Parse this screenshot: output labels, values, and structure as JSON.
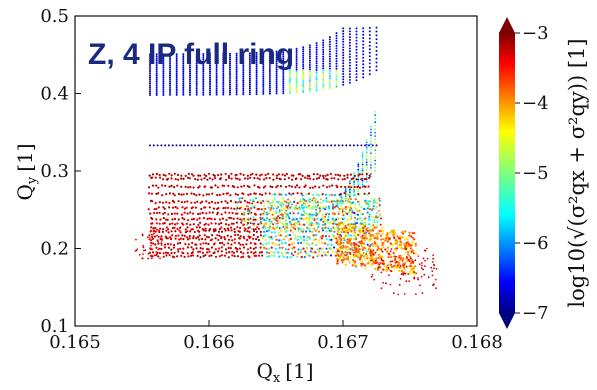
{
  "chart_data": {
    "type": "scatter",
    "title": "",
    "annotation": "Z, 4 IP full ring",
    "xlabel": "Q",
    "xlabel_sub": "x",
    "xlabel_unit": "[1]",
    "ylabel": "Q",
    "ylabel_sub": "y",
    "ylabel_unit": "[1]",
    "xlim": [
      0.165,
      0.168
    ],
    "ylim": [
      0.1,
      0.5
    ],
    "xticks": [
      "0.165",
      "0.166",
      "0.167",
      "0.168"
    ],
    "yticks": [
      "0.1",
      "0.2",
      "0.3",
      "0.4",
      "0.5"
    ],
    "grid": false,
    "colorbar": {
      "label": "log10(√(σ²qx + σ²qy)) [1]",
      "range": [
        -7,
        -3
      ],
      "ticks": [
        "−7",
        "−6",
        "−5",
        "−4",
        "−3"
      ],
      "colormap": "jet",
      "extend": "both"
    },
    "series": [
      {
        "shape": "upper-band-curve",
        "y_range": [
          0.395,
          0.485
        ],
        "x_range": [
          0.16556,
          0.16727
        ],
        "log_sigma": [
          -7,
          -4
        ]
      },
      {
        "shape": "horizontal-line",
        "y": 0.333,
        "x_range": [
          0.16556,
          0.16725
        ],
        "log_sigma": -7
      },
      {
        "shape": "horizontal-lines",
        "y_values": [
          0.295,
          0.29,
          0.28,
          0.27,
          0.26,
          0.245,
          0.232,
          0.222,
          0.212,
          0.2,
          0.19
        ],
        "x_range": [
          0.16556,
          0.1672
        ],
        "log_sigma": [
          -7,
          -3
        ]
      },
      {
        "shape": "tail-cluster",
        "x_range": [
          0.1671,
          0.16755
        ],
        "y_range": [
          0.14,
          0.25
        ],
        "log_sigma": [
          -4,
          -3
        ]
      }
    ]
  }
}
